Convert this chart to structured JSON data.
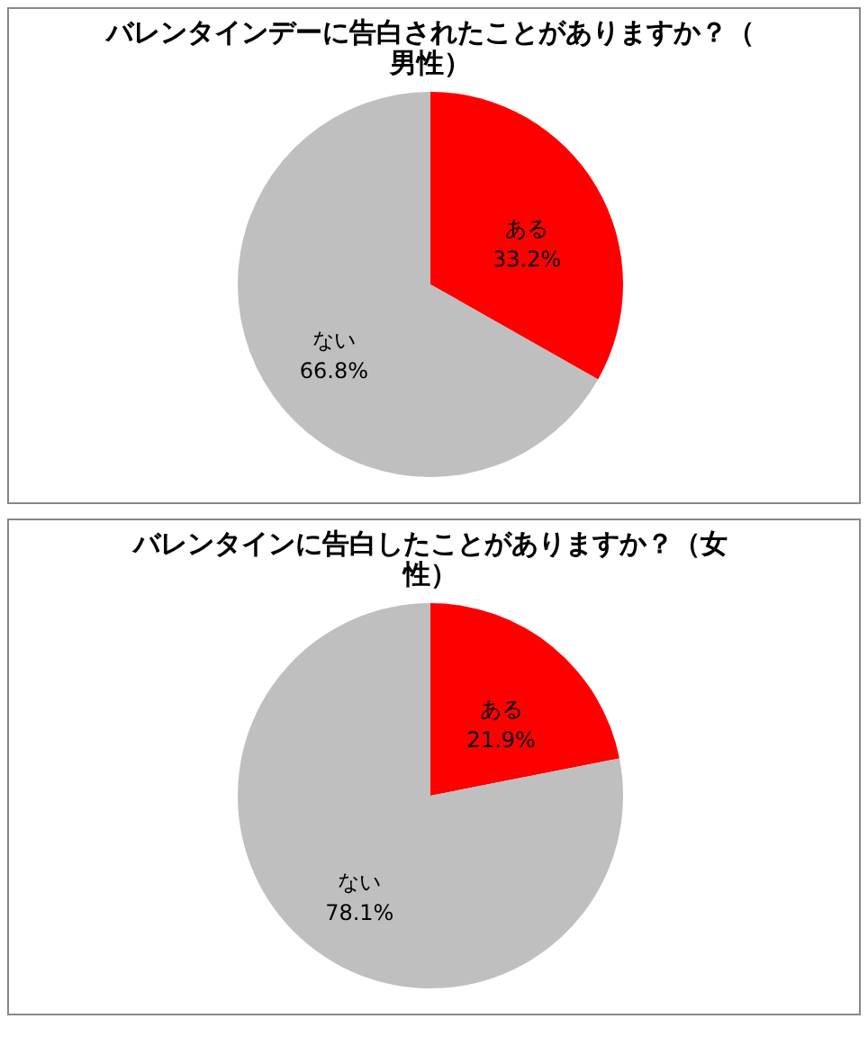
{
  "chart_data": [
    {
      "type": "pie",
      "title": "バレンタインデーに告白されたことがありますか？（男性）",
      "categories": [
        "ある",
        "ない"
      ],
      "values": [
        33.2,
        66.8
      ],
      "colors": [
        "#ff0000",
        "#bfbfbf"
      ],
      "value_labels": [
        "33.2%",
        "66.8%"
      ]
    },
    {
      "type": "pie",
      "title": "バレンタインに告白したことがありますか？（女性）",
      "categories": [
        "ある",
        "ない"
      ],
      "values": [
        21.9,
        78.1
      ],
      "colors": [
        "#ff0000",
        "#bfbfbf"
      ],
      "value_labels": [
        "21.9%",
        "78.1%"
      ]
    }
  ]
}
